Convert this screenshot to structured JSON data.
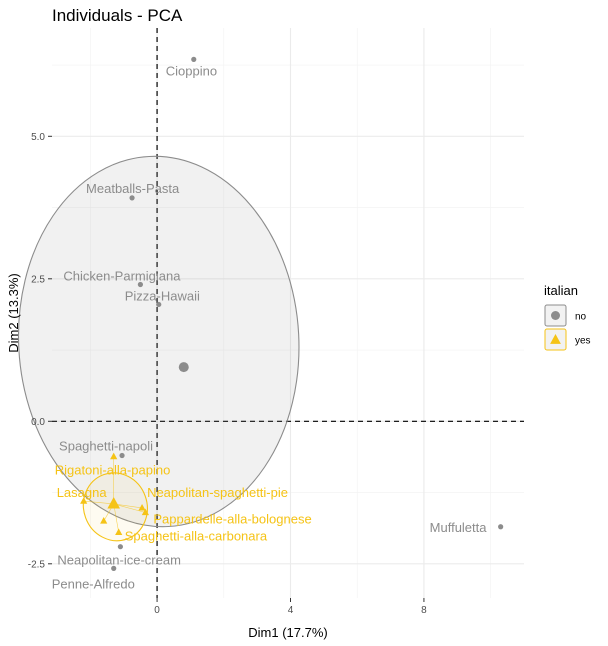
{
  "chart_data": {
    "type": "scatter",
    "title": "Individuals - PCA",
    "xlabel": "Dim1 (17.7%)",
    "ylabel": "Dim2 (13.3%)",
    "xlim": [
      -3.15,
      11.0
    ],
    "ylim": [
      -3.1,
      6.9
    ],
    "x_ticks": [
      0,
      4,
      8
    ],
    "y_ticks": [
      5.0,
      2.5,
      0.0,
      -2.5
    ],
    "x_tick_labels": [
      "0",
      "4",
      "8"
    ],
    "y_tick_labels": [
      "5.0",
      "2.5",
      "0.0",
      "-2.5"
    ],
    "grid": true,
    "legend": {
      "title": "italian",
      "position": "right",
      "entries": [
        {
          "label": "no",
          "color": "#8c8c8c",
          "shape": "circle"
        },
        {
          "label": "yes",
          "color": "#f5c316",
          "shape": "triangle"
        }
      ]
    },
    "series": [
      {
        "name": "no",
        "color": "#8c8c8c",
        "shape": "circle",
        "points": [
          {
            "label": "Cioppino",
            "x": 1.1,
            "y": 6.35
          },
          {
            "label": "Meatballs-Pasta",
            "x": -0.75,
            "y": 3.92
          },
          {
            "label": "Chicken-Parmigiana",
            "x": -0.5,
            "y": 2.4
          },
          {
            "label": "Pizza-Hawaii",
            "x": 0.05,
            "y": 2.05
          },
          {
            "label": "Spaghetti-napoli",
            "x": -1.05,
            "y": -0.6
          },
          {
            "label": "Neapolitan-ice-cream",
            "x": -1.1,
            "y": -2.2
          },
          {
            "label": "Penne-Alfredo",
            "x": -1.3,
            "y": -2.58
          },
          {
            "label": "Muffuletta",
            "x": 10.3,
            "y": -1.85
          }
        ],
        "centroid": {
          "x": 0.8,
          "y": 0.95
        },
        "ellipse": {
          "cx": 0.05,
          "cy": 1.4,
          "rx": 4.2,
          "ry": 3.25,
          "angle": -3
        }
      },
      {
        "name": "yes",
        "color": "#f5c316",
        "shape": "triangle",
        "points": [
          {
            "label": "Rigatoni-alla-papino",
            "x": -1.3,
            "y": -0.62
          },
          {
            "label": "Lasagna",
            "x": -2.2,
            "y": -1.4
          },
          {
            "label": "Neapolitan-spaghetti-pie",
            "x": -0.45,
            "y": -1.52
          },
          {
            "label": "Pappardelle-alla-bolognese",
            "x": -0.35,
            "y": -1.6
          },
          {
            "label": "Spaghetti-alla-carbonara",
            "x": -1.15,
            "y": -1.95
          },
          {
            "label": "",
            "x": -1.6,
            "y": -1.75
          }
        ],
        "centroid": {
          "x": -1.3,
          "y": -1.45
        },
        "ellipse": {
          "cx": -1.25,
          "cy": -1.5,
          "rx": 0.95,
          "ry": 0.6,
          "angle": -20
        }
      }
    ]
  }
}
